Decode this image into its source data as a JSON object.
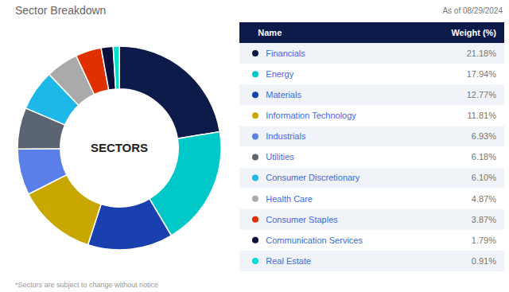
{
  "chart_data": {
    "type": "pie",
    "title": "Sector Breakdown",
    "subtitle": "As of 08/29/2024",
    "footnote": "*Sectors are subject to change without notice",
    "center_label": "SECTORS",
    "table_headers": [
      "Name",
      "Weight (%)"
    ],
    "categories": [
      "Financials",
      "Energy",
      "Materials",
      "Information Technology",
      "Industrials",
      "Utilities",
      "Consumer Discretionary",
      "Health Care",
      "Consumer Staples",
      "Communication Services",
      "Real Estate"
    ],
    "values": [
      21.18,
      17.94,
      12.77,
      11.81,
      6.93,
      6.18,
      6.1,
      4.87,
      3.87,
      1.79,
      0.91
    ],
    "value_labels": [
      "21.18%",
      "17.94%",
      "12.77%",
      "11.81%",
      "6.93%",
      "6.18%",
      "6.10%",
      "4.87%",
      "3.87%",
      "1.79%",
      "0.91%"
    ],
    "colors": [
      "#0d1b4b",
      "#00c8c8",
      "#1a3faf",
      "#c8a800",
      "#5b7fe8",
      "#5a6472",
      "#1eb8e8",
      "#aaaaaa",
      "#e03000",
      "#0a0f3d",
      "#00e0cc"
    ],
    "data_labels": true,
    "legend": "right"
  }
}
